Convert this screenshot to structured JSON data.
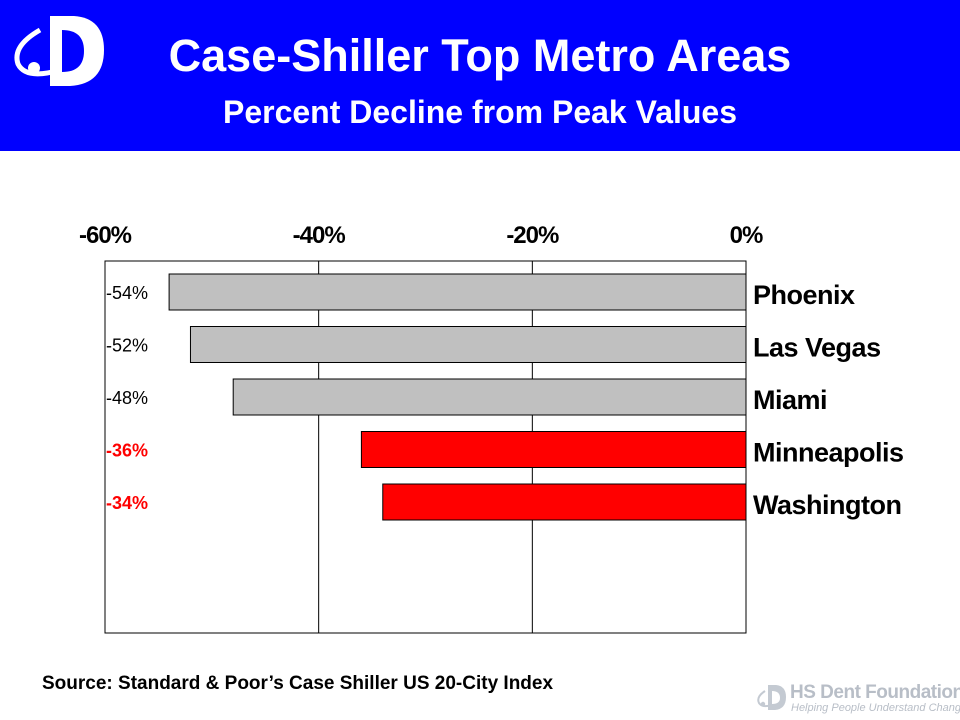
{
  "header": {
    "title": "Case-Shiller Top Metro Areas",
    "subtitle": "Percent Decline from Peak Values",
    "background_color": "#0000ff"
  },
  "chart_data": {
    "type": "bar",
    "orientation": "horizontal",
    "title": "Case-Shiller Top Metro Areas",
    "subtitle": "Percent Decline from Peak Values",
    "xlabel": "",
    "ylabel": "",
    "x_axis_position": "top",
    "category_axis_position": "right",
    "xlim": [
      -60,
      0
    ],
    "x_ticks": [
      -60,
      -40,
      -20,
      0
    ],
    "x_tick_labels": [
      "-60%",
      "-40%",
      "-20%",
      "0%"
    ],
    "grid": true,
    "legend": "none",
    "categories": [
      "Phoenix",
      "Las Vegas",
      "Miami",
      "Minneapolis",
      "Washington"
    ],
    "values": [
      -54,
      -52,
      -48,
      -36,
      -34
    ],
    "data_labels": [
      "-54%",
      "-52%",
      "-48%",
      "-36%",
      "-34%"
    ],
    "bar_colors": [
      "#c0c0c0",
      "#c0c0c0",
      "#c0c0c0",
      "#ff0000",
      "#ff0000"
    ],
    "label_colors": [
      "#000000",
      "#000000",
      "#000000",
      "#ff0000",
      "#ff0000"
    ]
  },
  "footer": {
    "source": "Source: Standard & Poor’s Case Shiller US 20-City Index",
    "brand_name": "HS Dent Foundation",
    "brand_tagline": "Helping People Understand Change"
  }
}
